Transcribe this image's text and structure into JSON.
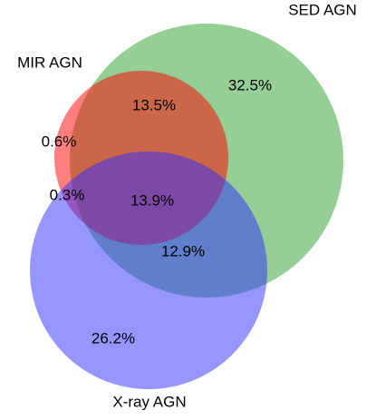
{
  "chart_data": {
    "type": "venn",
    "sets": [
      {
        "name": "SED AGN",
        "color": "#2ca02c"
      },
      {
        "name": "MIR AGN",
        "color": "#ff0000"
      },
      {
        "name": "X-ray AGN",
        "color": "#2d2dff"
      }
    ],
    "values": [
      32.5,
      13.5,
      0.6,
      0.3,
      13.9,
      12.9,
      26.2
    ],
    "value_labels": [
      "32.5%",
      "13.5%",
      "0.6%",
      "0.3%",
      "13.9%",
      "12.9%",
      "26.2%"
    ]
  }
}
